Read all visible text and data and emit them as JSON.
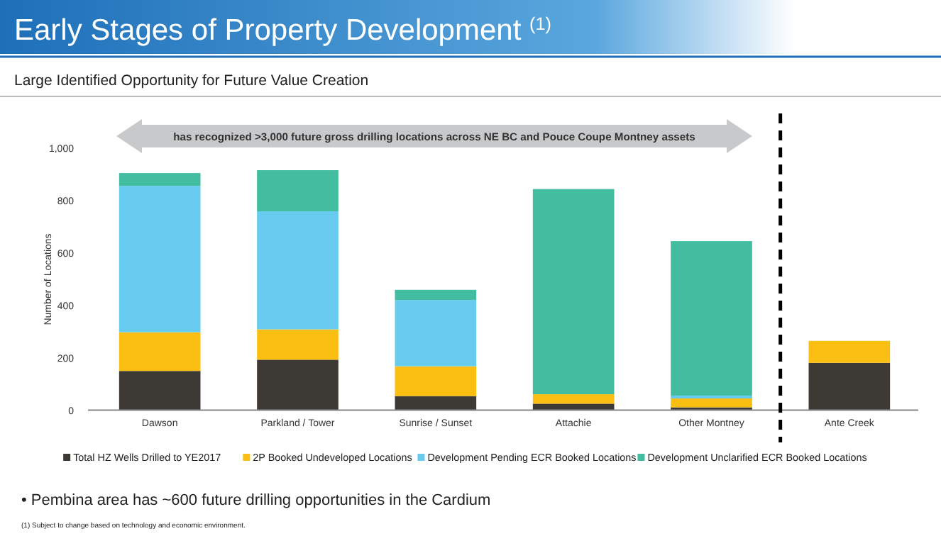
{
  "chart_data": {
    "type": "bar",
    "title": "Early Stages of Property Development $^{(1)}$",
    "subtitle": "Large Identified Opportunity for Future Value Creation",
    "ylabel": "Number of Locations",
    "categories": [
      "Dawson",
      "Parkland / Tower",
      "Sunrise / Sunset",
      "Attachie",
      "Other Montney",
      "Ante Creek"
    ],
    "stacked": true,
    "series": [
      {
        "name": "Total HZ Wells Drilled to YE2017",
        "color": "#3d3935",
        "values": [
          150,
          193,
          54,
          25,
          11,
          181
        ]
      },
      {
        "name": "2P Booked Undeveloped Locations",
        "color": "#fbbf14",
        "values": [
          148,
          116,
          114,
          36,
          34,
          84
        ]
      },
      {
        "name": "Development Pending ECR Booked Locations",
        "color": "#67cbf0",
        "values": [
          559,
          451,
          253,
          0,
          11,
          0
        ]
      },
      {
        "name": "Development Unclarified ECR Booked Locations",
        "color": "#42bda0",
        "values": [
          49,
          157,
          39,
          784,
          590,
          0
        ]
      }
    ],
    "ylim": [
      0,
      1000
    ],
    "yticks": [
      0,
      200,
      400,
      600,
      800,
      {
        "value": 1000,
        "label": "1,000"
      }
    ],
    "legend": "bottom",
    "annotations": [
      "has recognized >3,000 future gross drilling locations across NE BC and Pouce Coupe Montney assets",
      "• Pembina area has ~600 future drilling opportunities in the Cardium",
      "(1) Subject to change based on technology and economic environment."
    ]
  }
}
